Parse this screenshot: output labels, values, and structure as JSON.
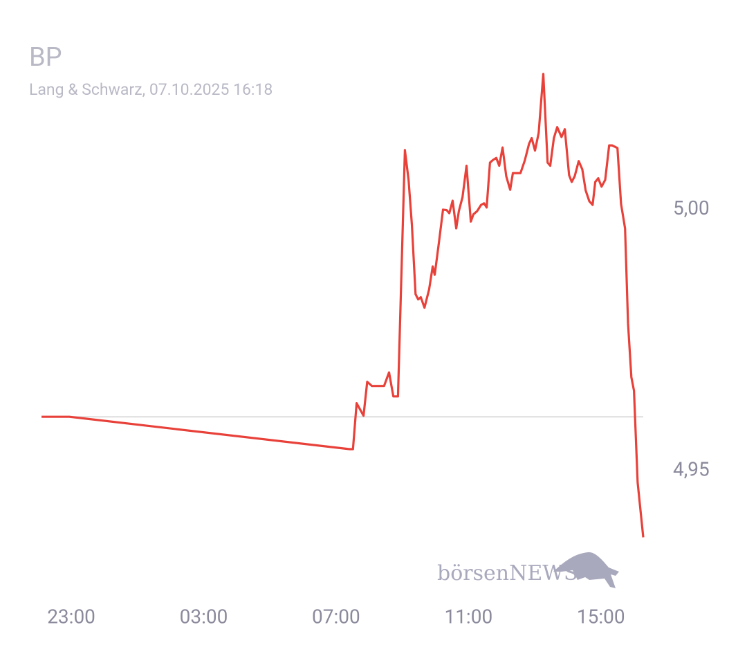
{
  "chart_data": {
    "type": "line",
    "title": "BP",
    "subtitle": "Lang & Schwarz, 07.10.2025 16:18",
    "watermark": "börsenNEWS",
    "x": [
      22.1,
      22.94,
      31.41,
      31.51,
      31.62,
      31.83,
      31.94,
      32.08,
      32.45,
      32.6,
      32.73,
      32.87,
      33.08,
      33.19,
      33.29,
      33.4,
      33.48,
      33.56,
      33.67,
      33.81,
      33.92,
      33.98,
      34.11,
      34.23,
      34.34,
      34.42,
      34.52,
      34.63,
      34.71,
      34.82,
      34.94,
      35.07,
      35.15,
      35.26,
      35.38,
      35.47,
      35.55,
      35.65,
      35.74,
      35.84,
      35.93,
      36.03,
      36.14,
      36.26,
      36.34,
      36.57,
      36.7,
      36.83,
      36.91,
      37.01,
      37.12,
      37.26,
      37.39,
      37.47,
      37.58,
      37.68,
      37.81,
      37.91,
      38.04,
      38.12,
      38.21,
      38.33,
      38.44,
      38.54,
      38.65,
      38.75,
      38.83,
      38.92,
      39.02,
      39.13,
      39.25,
      39.34,
      39.5,
      39.61,
      39.73,
      39.82,
      39.92,
      40.0,
      40.11,
      40.28
    ],
    "series": [
      {
        "color": "#e8413a",
        "values": [
          4.9603,
          4.9603,
          4.9541,
          4.9541,
          4.9629,
          4.9605,
          4.967,
          4.9662,
          4.9662,
          4.9688,
          4.9642,
          4.9642,
          5.0114,
          5.0057,
          4.9971,
          4.9838,
          4.9828,
          4.9832,
          4.9812,
          4.9847,
          4.9891,
          4.9875,
          4.9938,
          5.0,
          4.9999,
          4.9993,
          5.0017,
          4.9964,
          4.9997,
          5.0024,
          5.0084,
          4.9977,
          4.9991,
          4.9997,
          5.0009,
          5.0012,
          5.0004,
          5.009,
          5.0095,
          5.0099,
          5.0084,
          5.0119,
          5.0064,
          5.0038,
          5.007,
          5.007,
          5.0094,
          5.0126,
          5.0137,
          5.0113,
          5.0147,
          5.026,
          5.009,
          5.0084,
          5.0137,
          5.0158,
          5.0139,
          5.0154,
          5.0066,
          5.0053,
          5.0064,
          5.0093,
          5.0077,
          5.0037,
          5.0016,
          5.0009,
          5.0053,
          5.006,
          5.0044,
          5.0057,
          5.0123,
          5.0123,
          5.0118,
          5.0011,
          4.9964,
          4.9782,
          4.9679,
          4.9653,
          4.9477,
          4.9372
        ]
      }
    ],
    "reference_line": 4.9603,
    "xlim": [
      22.1,
      40.28
    ],
    "xticks": [
      {
        "value": 23,
        "label": "23:00"
      },
      {
        "value": 27,
        "label": "03:00"
      },
      {
        "value": 31,
        "label": "07:00"
      },
      {
        "value": 35,
        "label": "11:00"
      },
      {
        "value": 39,
        "label": "15:00"
      }
    ],
    "ylim": [
      4.9354,
      5.0269
    ],
    "yticks": [
      {
        "value": 4.95,
        "label": "4,95"
      },
      {
        "value": 5.0,
        "label": "5,00"
      }
    ]
  }
}
